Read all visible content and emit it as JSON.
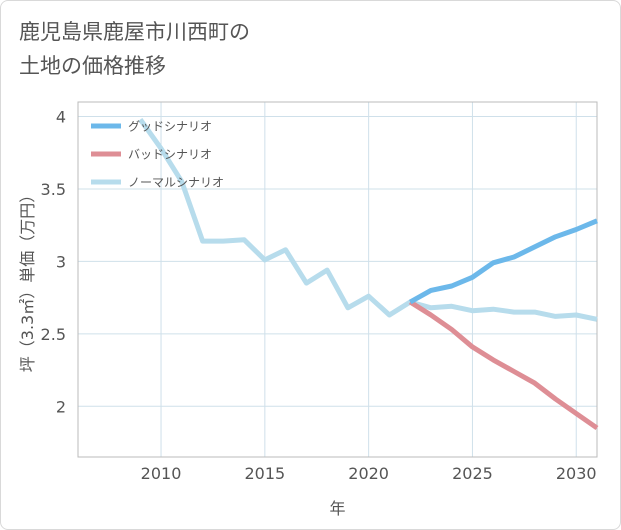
{
  "title": {
    "line1": "鹿児島県鹿屋市川西町の",
    "line2": "土地の価格推移"
  },
  "chart_data": {
    "type": "line",
    "title": "鹿児島県鹿屋市川西町の土地の価格推移",
    "xlabel": "年",
    "ylabel": "坪（3.3㎡）単価（万円）",
    "xlim": [
      2006,
      2031
    ],
    "ylim": [
      1.65,
      4.1
    ],
    "x_ticks": [
      2010,
      2015,
      2020,
      2025,
      2030
    ],
    "y_ticks": [
      2,
      2.5,
      3,
      3.5,
      4
    ],
    "x_tick_labels": [
      "2010",
      "2015",
      "2020",
      "2025",
      "2030"
    ],
    "y_tick_labels": [
      "2",
      "2.5",
      "3",
      "3.5",
      "4"
    ],
    "grid": true,
    "legend_position": "top-left",
    "series": [
      {
        "name": "グッドシナリオ",
        "color": "#6cb8ea",
        "x": [
          2022,
          2023,
          2024,
          2025,
          2026,
          2027,
          2028,
          2029,
          2030,
          2031
        ],
        "y": [
          2.72,
          2.8,
          2.83,
          2.89,
          2.99,
          3.03,
          3.1,
          3.17,
          3.22,
          3.28
        ]
      },
      {
        "name": "バッドシナリオ",
        "color": "#de8e95",
        "x": [
          2022,
          2023,
          2024,
          2025,
          2026,
          2027,
          2028,
          2029,
          2030,
          2031
        ],
        "y": [
          2.72,
          2.63,
          2.53,
          2.41,
          2.32,
          2.24,
          2.16,
          2.05,
          1.95,
          1.85
        ]
      },
      {
        "name": "ノーマルシナリオ",
        "color": "#b7dcec",
        "x": [
          2009,
          2010,
          2011,
          2012,
          2013,
          2014,
          2015,
          2016,
          2017,
          2018,
          2019,
          2020,
          2021,
          2022,
          2023,
          2024,
          2025,
          2026,
          2027,
          2028,
          2029,
          2030,
          2031
        ],
        "y": [
          3.98,
          3.78,
          3.55,
          3.14,
          3.14,
          3.15,
          3.01,
          3.08,
          2.85,
          2.94,
          2.68,
          2.76,
          2.63,
          2.72,
          2.68,
          2.69,
          2.66,
          2.67,
          2.65,
          2.65,
          2.62,
          2.63,
          2.6
        ]
      }
    ]
  }
}
